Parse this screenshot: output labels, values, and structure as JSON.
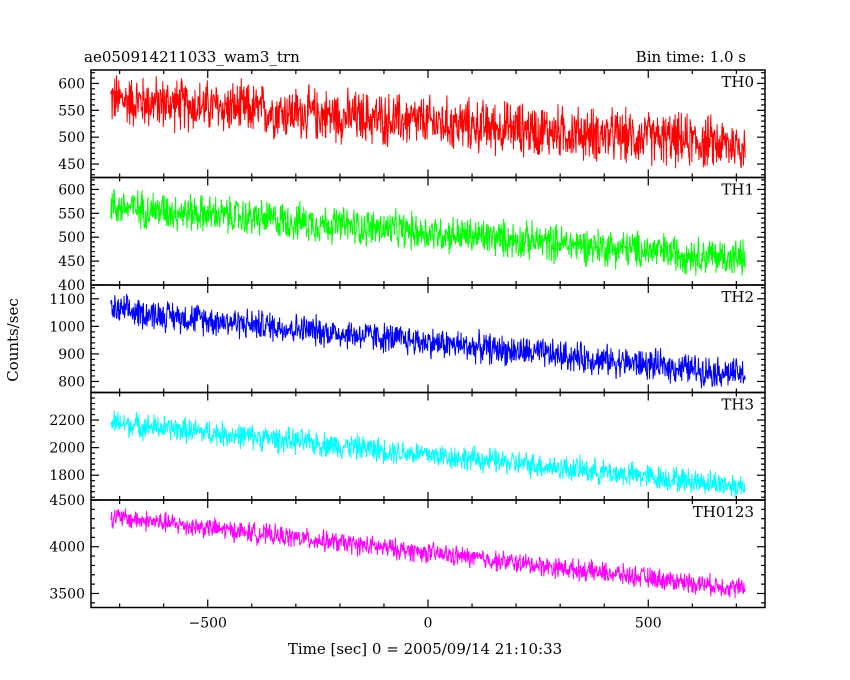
{
  "header": {
    "title": "ae050914211033_wam3_trn",
    "bin_time": "Bin time: 1.0 s"
  },
  "chart_data": {
    "type": "line",
    "title": "ae050914211033_wam3_trn",
    "xlabel": "Time [sec] 0 = 2005/09/14 21:10:33",
    "ylabel": "Counts/sec",
    "xlim": [
      -765,
      765
    ],
    "x_ticks": [
      -500,
      0,
      500
    ],
    "x_tick_labels": [
      "−500",
      "0",
      "500"
    ],
    "x_range": [
      -720,
      720
    ],
    "grid": false,
    "panels": [
      {
        "name": "TH0",
        "color": "#ff0000",
        "ylim": [
          425,
          625
        ],
        "y_ticks": [
          450,
          500,
          550,
          600
        ],
        "start": 570,
        "end": 485,
        "noise": 40
      },
      {
        "name": "TH1",
        "color": "#00ff00",
        "ylim": [
          400,
          625
        ],
        "y_ticks": [
          400,
          450,
          500,
          550,
          600
        ],
        "start": 565,
        "end": 455,
        "noise": 32
      },
      {
        "name": "TH2",
        "color": "#0000ff",
        "ylim": [
          760,
          1150
        ],
        "y_ticks": [
          800,
          900,
          1000,
          1100
        ],
        "start": 1060,
        "end": 825,
        "noise": 45
      },
      {
        "name": "TH3",
        "color": "#00ffff",
        "ylim": [
          1620,
          2400
        ],
        "y_ticks": [
          1800,
          2000,
          2200
        ],
        "start": 2180,
        "end": 1720,
        "noise": 75
      },
      {
        "name": "TH0123",
        "color": "#ff00ff",
        "ylim": [
          3350,
          4500
        ],
        "y_ticks": [
          3500,
          4000,
          4500
        ],
        "start": 4320,
        "end": 3550,
        "noise": 90
      }
    ]
  }
}
